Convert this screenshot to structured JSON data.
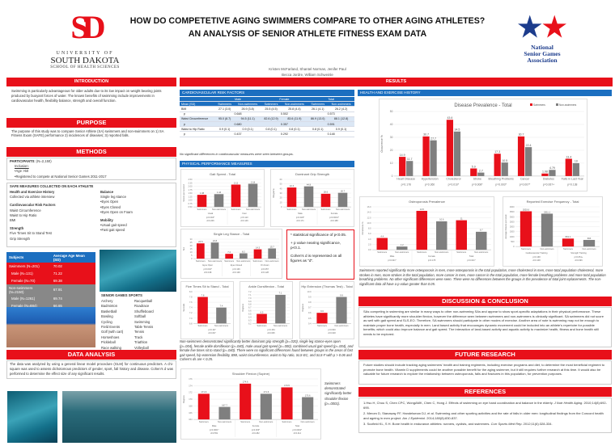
{
  "header": {
    "title_line1": "HOW DO COMPETETIVE AGING SWIMMERS COMPARE TO OTHER AGING ATHLETES?",
    "title_line2": "AN ANALYSIS OF SENIOR ATHLETE FITNESS EXAM DATA",
    "authors_line1": "Kristen McFarland, Shantel Norman, Jenifer Paul",
    "authors_line2": "Becca Jordre, William Schweinle",
    "usd_logo": {
      "line1": "UNIVERSITY OF",
      "line2": "SOUTH DAKOTA",
      "line3": "SCHOOL OF HEALTH SCIENCES"
    },
    "nsga_logo": {
      "line1": "National",
      "line2": "Senior Games",
      "line3": "Association"
    }
  },
  "colors": {
    "accent_red": "#e8101a",
    "header_blue": "#1c6fc0",
    "non_swimmer_gray": "#7f7f7f"
  },
  "intro": {
    "heading": "INTRODUCTION",
    "text": "Swimming is particularly advantageous for older adults due to its low impact on weight bearing joints produced by buoyant forces of water. The known benefits of swimming include improvements in cardiovascular health, flexibility balance, strength and overall function."
  },
  "purpose": {
    "heading": "PURPOSE",
    "text": "The purpose of this study was to compare Senior Athlete (SA) swimmers and non-swimmers on 1) SA Fitness Exam (SAFE) performance 2) incidences of diseases; 3) reported falls."
  },
  "methods": {
    "heading": "METHODS",
    "participants_label": "PARTICIPANTS:",
    "participants_n": "(N=2,150)",
    "inclusion_label": "Inclusion:",
    "inclusion": [
      "•Age >50",
      "•Registered to compete at National Senior Games 2011-2017"
    ],
    "safe_heading": "SAFE MEASURES COLLECTED ON EACH ATHLETE",
    "left": [
      {
        "title": "Health and Exercise History",
        "items": [
          "Collected via athlete interview"
        ]
      },
      {
        "title": "Cardiovascular Risk Factors",
        "items": [
          "Waist Circumference",
          "Waist to Hip Ratio",
          "BMI"
        ]
      },
      {
        "title": "Strength",
        "items": [
          "Five Times Sit to Stand Test",
          "Grip Strength"
        ]
      }
    ],
    "right": [
      {
        "title": "Balance",
        "items": [
          "Single leg stance",
          "•Eyes Open",
          "•Eyes Closed",
          "•Eyes Open on Foam"
        ]
      },
      {
        "title": "Mobility",
        "items": [
          "•Usual gait speed",
          "•Fast gait speed"
        ]
      }
    ]
  },
  "subjects": {
    "headers": [
      "Subjects",
      "Average Age Mean (SD)"
    ],
    "rows": [
      {
        "label": "Swimmers (N=201)",
        "value": "70.02",
        "group": "swimmer"
      },
      {
        "label": "Male (N=131)",
        "value": "71.22",
        "group": "swimmer"
      },
      {
        "label": "Female (N=70)",
        "value": "69.38",
        "group": "swimmer"
      },
      {
        "label": "Non-swimmers (N=2150)",
        "value": "67.91",
        "group": "non"
      },
      {
        "label": "Male (N=1261)",
        "value": "69.74",
        "group": "non"
      },
      {
        "label": "Female (N=884)",
        "value": "66.65",
        "group": "non"
      }
    ]
  },
  "sports": {
    "heading": "SENIOR GAMES SPORTS",
    "col1": [
      "Archery",
      "Badminton",
      "Basketball",
      "Bowling",
      "Cycling",
      "Field Events",
      "Golf (with cart)",
      "Horseshoes",
      "Pickleball",
      "Race walking"
    ],
    "col2": [
      "Racquetball",
      "Roadrace",
      "Shuffleboard",
      "Softball",
      "Swimming",
      "Table Tennis",
      "Tennis",
      "Track",
      "Triathlon",
      "Volleyball"
    ]
  },
  "data_analysis": {
    "heading": "DATA ANALYSIS",
    "text": "The data was analyzed by using a general linear model procedure (GLM) for continuous predictors. A chi-square was used to assess dichotomous predictors of gender, sport, fall history and disease. Cohen's d was performed to determine the effect size of any significant results."
  },
  "results": {
    "heading": "RESULTS",
    "cv": {
      "heading": "CARDIOVASCULAR RISK FACTORS",
      "groups": [
        "Male",
        "Female",
        "Total"
      ],
      "subheaders": [
        "Mean (SD)",
        "Swimmers",
        "Non-swimmers",
        "Swimmers",
        "Non-swimmers",
        "Swimmers",
        "Non-swimmers"
      ],
      "rows": [
        {
          "label": "BMI",
          "cells": [
            "27.1 (3.0)",
            "26.9 (3.8)",
            "25.5 (4.5)",
            "25.8 (4.4)",
            "26.1 (4.1)",
            "26.2 (4.2)"
          ],
          "p": [
            "0.648",
            "0.502",
            "0.573"
          ]
        },
        {
          "label": "Waist Circumference",
          "cells": [
            "95.0 (8.7)",
            "94.5 (11.1)",
            "82.6 (12.9)",
            "83.6 (11.9)",
            "86.9 (13.0)",
            "88.1 (12.8)"
          ],
          "p": [
            "0.680",
            "0.357",
            "0.591"
          ]
        },
        {
          "label": "Waist to Hip Ratio",
          "cells": [
            "0.9 (0.1)",
            "0.9 (0.1)",
            "0.8 (0.1)",
            "0.8 (0.1)",
            "0.8 (0.1)",
            "0.9 (0.1)"
          ],
          "p": [
            "0.437",
            "0.292",
            "0.148"
          ]
        }
      ],
      "p_label": "p",
      "note": "No significant differences in cardiovascular measures were seen between groups."
    },
    "pp_heading": "PHYSICAL PERFORMANCE MEASURES",
    "significance_note": [
      "* statistical significance of p<0.05.",
      "+ p value nearing significance, p<0.1.",
      "Cohen's d is represented on all figures as \"d\"."
    ],
    "pp_text": "Non-swimmers demonstrated significantly better dominant grip strength (p=.020), single leg stance-eyes open (p=.004), female ankle dorsiflexion (p=.040), male usual gait speed (p=.000), combined usual gait speed (p=.004), and female five times sit to stand (p=.040). There were no significant differences found between groups in the areas of fast gait speed, hip extension flexibility, BMI, waist circumference, waist to hip ratio, SLS-EC, and SLS-F with p > 0.06 and Cohen's ds are < 0.25.",
    "shoulder_text": "Swimmers demonstrated significantly better shoulder flexion (p=.0001).",
    "he_heading": "HEALTH AND EXERCISE HISTORY",
    "he_text": "Swimmers reported significantly more osteoporosis in men, more osteoporosis in the total population, more cholesterol in men, more total population cholesterol, more strokes in men, more strokes in the total population, more cancer in men, more cancer in the total population, more female breathing problems and more total population breathing problems. No other significant differences were seen. There were no differences between the groups in the prevalence of total joint replacements. The non-significant data all have a p-value greater than 0.05."
  },
  "discussion": {
    "heading": "DISCUSSION & CONCLUSION",
    "text": "SAs competing in swimming are similar in many ways to other non-swimming SAs and appear to show sport-specific adaptations in their physical performance. These athletes have significantly more shoulder flexion, however the difference seen between swimmers and non-swimmers is clinically significant. SA swimmers did not score as well with gait speed and SLS-EO. Therefore, SA swimmers should participate in other modes of exercise. Another area of note is swimming may not be enough to maintain proper bone health, especially in men. Land based activity that encourages dynamic movement could be included into an athlete's repertoire for possible benefits; which could also improve balance and gait speed. The interaction of land-based activity and aquatic activity to maximize health, fitness and bone health still needs to be explored."
  },
  "future": {
    "heading": "FUTURE RESEARCH",
    "text": "Future studies should include tracking aging swimmers' health and training regiments, including exercise programs and diet, to determine the most beneficial regiment to promote bone health. Vitamin D supplements could be another possible benefit for the aging swimmer, but it still requires further research at this time. It would also be valuable for future research to explore the relationship between osteoporosis, falls and fractures in this population, for prevention purposes."
  },
  "references": {
    "heading": "REFERENCES",
    "items": [
      {
        "text": "1.Hsu H, Chou S, Chen CPC, WongAMK, Chen C, Hong J. Effects of swimming on eye hand coordination and balance in the elderly. ",
        "journal": "J Nutr Health Aging",
        "tail": ". 2010;14(8):692-695."
      },
      {
        "text": "2. Merom D, Stanaway FF, Handelsman DJ, et al. Swimming and other sporting activities and the rate of falls in older men: longitudinal findings from the Concord health and ageing in men project. ",
        "journal": "Am J Epidemiol",
        "tail": ". 2014;180(8):830-837."
      },
      {
        "text": "3. Scofield KL, S H. Bone health in endurance athletes: runners, cyclists, and swimmers. ",
        "journal": "Curr Sports Med Rep",
        "tail": ". 2012;11(6):328-334."
      }
    ]
  },
  "chart_data": [
    {
      "id": "gait",
      "type": "bar",
      "title": "Gait Speed - Total",
      "ylabel": "Meters per second",
      "ylim": [
        0.5,
        2.5
      ],
      "ystep": 0.25,
      "decimals": 2,
      "groups": [
        {
          "label": "Usual",
          "bars": [
            "Swimmers",
            "Non-swimmers"
          ],
          "values": [
            1.38,
            1.43
          ],
          "note": [
            "p=0.004*",
            "d=0.206"
          ]
        },
        {
          "label": "Fast",
          "bars": [
            "Swimmers",
            "Non-swimmers"
          ],
          "values": [
            2.12,
            2.18
          ],
          "note": [
            "p=0.113",
            "d=0.146"
          ]
        }
      ]
    },
    {
      "id": "grip",
      "type": "bar",
      "title": "Dominant Grip Strength",
      "ylabel": "Kilograms",
      "ylim": [
        0,
        60
      ],
      "ystep": 10,
      "decimals": 1,
      "groups": [
        {
          "label": "Male",
          "bars": [
            "Swimmers",
            "Non-swimmers"
          ],
          "values": [
            42.3,
            44.8
          ],
          "note": [
            "p=0.020*",
            "d=0.171"
          ]
        },
        {
          "label": "Female",
          "bars": [
            "Swimmers",
            "Non-swimmers"
          ],
          "values": [
            28.6,
            30.7
          ],
          "note": [
            "p=0.0001*",
            "d=0.188"
          ]
        }
      ]
    },
    {
      "id": "sls",
      "type": "bar",
      "title": "Single Leg Stance - Total",
      "ylabel": "Sec",
      "ylim": [
        0,
        30
      ],
      "ystep": 5,
      "decimals": 1,
      "groups": [
        {
          "label": "Eyes Open",
          "bars": [
            "Swimmers",
            "Non-swimmers"
          ],
          "values": [
            23.5,
            24.8
          ],
          "note": [
            "p=0.004*",
            "d=0.198"
          ]
        },
        {
          "label": "Eyes Closed",
          "bars": [
            "Swimmers",
            "Non-swimmers"
          ],
          "values": [
            7.4,
            8.2
          ],
          "note": [
            "p=0.136",
            "d=0.138"
          ]
        },
        {
          "label": "On Foam",
          "bars": [
            "Swimmers",
            "Non-swimmers"
          ],
          "values": [
            14.3,
            15.7
          ],
          "note": [
            "p=0.057",
            "d=0.128"
          ]
        }
      ]
    },
    {
      "id": "fts",
      "type": "bar",
      "title": "Five Times Sit to Stand - Total",
      "ylabel": "Seconds",
      "ylim": [
        6.8,
        8.0
      ],
      "ystep": 0.2,
      "decimals": 1,
      "groups": [
        {
          "label": "",
          "bars": [
            "Swimmers",
            "Non-swimmers"
          ],
          "values": [
            7.8,
            7.4
          ],
          "note": [
            "p=0.167",
            "d=0.067"
          ]
        }
      ]
    },
    {
      "id": "ankle",
      "type": "bar",
      "title": "Ankle Dorsiflexion - Total",
      "ylabel": "Degrees",
      "ylim": [
        6.2,
        7.2
      ],
      "ystep": 0.1,
      "decimals": 1,
      "groups": [
        {
          "label": "",
          "bars": [
            "Swimmers",
            "Non-swimmers"
          ],
          "values": [
            6.5,
            7.1
          ],
          "note": [
            "p=0.154",
            "d=0.095"
          ]
        }
      ]
    },
    {
      "id": "hip",
      "type": "bar",
      "title": "Hip Extension (Thomas Test) - Total",
      "ylabel": "Degrees",
      "ylim": [
        9.4,
        10.0
      ],
      "ystep": 0.1,
      "decimals": 1,
      "groups": [
        {
          "label": "",
          "bars": [
            "Swimmers",
            "Non-swimmers"
          ],
          "values": [
            9.6,
            9.9
          ],
          "note": [
            "p=0.600",
            "d=0.028"
          ]
        }
      ]
    },
    {
      "id": "shoulder",
      "type": "bar",
      "title": "Shoulder Flexion (Supine)",
      "ylabel": "Degrees",
      "ylim": [
        164,
        176
      ],
      "ystep": 2,
      "decimals": 1,
      "groups": [
        {
          "label": "Male",
          "bars": [
            "Swimmers",
            "Non-swimmers"
          ],
          "values": [
            171.6,
            167.7
          ],
          "note": [
            "p=0.0001*",
            "d=0.551"
          ]
        },
        {
          "label": "Female",
          "bars": [
            "Swimmers",
            "Non-swimmers"
          ],
          "values": [
            174.6,
            171.6
          ],
          "note": [
            "p=0.003*",
            "d=0.282"
          ]
        },
        {
          "label": "Total",
          "bars": [
            "Swimmers",
            "Non-swimmers"
          ],
          "values": [
            173.5,
            170.6
          ],
          "note": [
            "p=0.0001*",
            "d=0.414"
          ]
        }
      ]
    },
    {
      "id": "disease",
      "type": "bar",
      "title": "Disease Prevalence - Total",
      "ylabel": "Occurrence %",
      "ylim": [
        0,
        50
      ],
      "ystep": 10,
      "decimals": 1,
      "legend": [
        "Swimmers",
        "Non-swimmers"
      ],
      "legend_position": "top-right",
      "groups": [
        {
          "label": "Heart Disease",
          "values": [
            14.9,
            11.7
          ],
          "note": [
            "p=0.178"
          ]
        },
        {
          "label": "Hypertension",
          "values": [
            30.7,
            27.7
          ],
          "note": [
            "p=0.360"
          ]
        },
        {
          "label": "Cholesterol",
          "values": [
            43.6,
            34.5
          ],
          "note": [
            "p=0.010*"
          ]
        },
        {
          "label": "Stroke",
          "values": [
            5.9,
            2.7
          ],
          "note": [
            "p=0.008*"
          ]
        },
        {
          "label": "Breathing Problems",
          "values": [
            17.3,
            10.5
          ],
          "note": [
            "p=0.003*"
          ]
        },
        {
          "label": "Cancer",
          "values": [
            30.7,
            22.4
          ],
          "note": [
            "p=0.007*"
          ]
        },
        {
          "label": "Diabetes",
          "values": [
            1.98,
            4.79
          ],
          "note": [
            "p=0.067+"
          ]
        },
        {
          "label": "Falls in Last Year",
          "values": [
            13.4,
            10.0
          ],
          "note": [
            "p=0.138"
          ]
        }
      ]
    },
    {
      "id": "osteo",
      "type": "bar",
      "title": "Osteoporosis Prevalence",
      "ylabel": "Occurrence %",
      "ylim": [
        0,
        16
      ],
      "ystep": 2,
      "decimals": 1,
      "groups": [
        {
          "label": "Male",
          "bars": [
            "Swimmers",
            "Non-swimmers"
          ],
          "values": [
            4.4,
            1.2
          ],
          "note": [
            "p=0.021*"
          ]
        },
        {
          "label": "Female",
          "bars": [
            "Swimmers",
            "Non-swimmers"
          ],
          "values": [
            14.5,
            10.6
          ],
          "note": [
            "p=0.178"
          ]
        },
        {
          "label": "Total",
          "bars": [
            "Swimmers",
            "Non-swimmers"
          ],
          "values": [
            11.0,
            6.7
          ],
          "note": [
            "p=0.021*"
          ]
        }
      ]
    },
    {
      "id": "exercise",
      "type": "bar",
      "title": "Reported Exercise Frequency - Total",
      "ylabel": "Average minutes per week",
      "ylim": [
        0,
        4000
      ],
      "ystep": 500,
      "decimals": 1,
      "groups": [
        {
          "label": "Cardiovascular Training",
          "bars": [
            "Swimmers",
            "Non-swimmers"
          ],
          "values": [
            3553.6,
            3311.1
          ],
          "note": [
            "p=0.168",
            "d=0.108"
          ]
        },
        {
          "label": "Strength Training",
          "bars": [
            "Swimmers",
            "Non-swimmers"
          ],
          "values": [
            801.1,
            663.0
          ],
          "note": [
            "p=0.051+",
            "d=0.096"
          ]
        }
      ]
    }
  ]
}
